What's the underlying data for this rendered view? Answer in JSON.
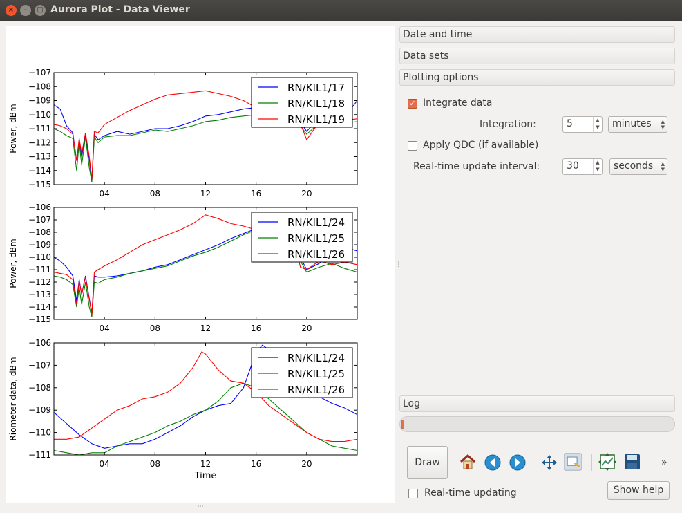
{
  "window": {
    "title": "Aurora Plot - Data Viewer",
    "close_glyph": "×",
    "min_glyph": "–",
    "max_glyph": "□"
  },
  "panel": {
    "sections": {
      "date_time": "Date and time",
      "data_sets": "Data sets",
      "plotting_options": "Plotting options",
      "log": "Log"
    },
    "integrate_data": {
      "label": "Integrate data",
      "checked": true
    },
    "integration": {
      "label": "Integration:",
      "value": "5",
      "unit": "minutes"
    },
    "apply_qdc": {
      "label": "Apply QDC (if available)",
      "checked": false
    },
    "update_interval": {
      "label": "Real-time update interval:",
      "value": "30",
      "unit": "seconds"
    },
    "progress": 0.01,
    "draw_label": "Draw",
    "realtime_updating": {
      "label": "Real-time updating",
      "checked": false
    },
    "show_help_label": "Show help",
    "more_glyph": "»",
    "toolbar_icons": [
      "home-icon",
      "back-icon",
      "forward-icon",
      "pan-icon",
      "zoom-icon",
      "configure-subplots-icon",
      "save-icon"
    ]
  },
  "colors": {
    "series1": "#0000ff",
    "series2": "#008000",
    "series3": "#ff0000",
    "accent": "#e0704d"
  },
  "chart_data": [
    {
      "type": "line",
      "ylabel": "Power, dBm",
      "xlabel": "",
      "xlim": [
        0,
        24
      ],
      "ylim": [
        -115,
        -107
      ],
      "xticks": [
        4,
        8,
        12,
        16,
        20
      ],
      "xticklabels": [
        "04",
        "08",
        "12",
        "16",
        "20"
      ],
      "yticks": [
        -115,
        -114,
        -113,
        -112,
        -111,
        -110,
        -109,
        -108,
        -107
      ],
      "legend": "top-right",
      "series": [
        {
          "name": "RN/KIL1/17",
          "color": "#0000ff",
          "x": [
            0,
            0.5,
            1,
            1.5,
            1.8,
            2,
            2.2,
            2.5,
            2.8,
            3,
            3.2,
            3.5,
            4,
            5,
            6,
            7,
            8,
            9,
            10,
            11,
            12,
            13,
            14,
            15,
            16,
            17,
            18,
            19,
            19.5,
            20,
            21,
            22,
            23,
            24
          ],
          "y": [
            -109.3,
            -109.6,
            -110.8,
            -111.3,
            -113.3,
            -111.8,
            -113.0,
            -111.4,
            -113.2,
            -114.8,
            -111.4,
            -111.8,
            -111.5,
            -111.2,
            -111.4,
            -111.2,
            -111.0,
            -111.0,
            -110.8,
            -110.5,
            -110.1,
            -110.0,
            -109.8,
            -109.6,
            -109.5,
            -109.3,
            -109.4,
            -109.5,
            -110.5,
            -111.2,
            -110.2,
            -110.3,
            -110.2,
            -109.0
          ]
        },
        {
          "name": "RN/KIL1/18",
          "color": "#008000",
          "x": [
            0,
            0.5,
            1,
            1.5,
            1.8,
            2,
            2.2,
            2.5,
            2.8,
            3,
            3.2,
            3.5,
            4,
            5,
            6,
            7,
            8,
            9,
            10,
            11,
            12,
            13,
            14,
            15,
            16,
            17,
            18,
            19,
            19.5,
            20,
            21,
            22,
            23,
            24
          ],
          "y": [
            -111.0,
            -111.2,
            -111.5,
            -111.7,
            -114.0,
            -112.0,
            -113.6,
            -111.6,
            -113.8,
            -114.8,
            -111.6,
            -112.0,
            -111.6,
            -111.5,
            -111.5,
            -111.3,
            -111.1,
            -111.2,
            -111.0,
            -110.8,
            -110.5,
            -110.4,
            -110.2,
            -110.1,
            -110.0,
            -110.1,
            -110.2,
            -110.3,
            -110.8,
            -111.4,
            -110.6,
            -110.7,
            -110.6,
            -110.5
          ]
        },
        {
          "name": "RN/KIL1/19",
          "color": "#ff0000",
          "x": [
            0,
            0.5,
            1,
            1.5,
            1.8,
            2,
            2.2,
            2.5,
            2.8,
            3,
            3.2,
            3.5,
            4,
            5,
            6,
            7,
            8,
            9,
            10,
            11,
            12,
            13,
            14,
            15,
            16,
            17,
            18,
            19,
            19.5,
            20,
            21,
            22,
            23,
            24
          ],
          "y": [
            -110.7,
            -110.8,
            -111.0,
            -111.4,
            -113.3,
            -111.7,
            -112.8,
            -111.3,
            -113.0,
            -114.6,
            -111.2,
            -111.3,
            -110.7,
            -110.2,
            -109.7,
            -109.3,
            -108.9,
            -108.6,
            -108.5,
            -108.4,
            -108.3,
            -108.5,
            -108.7,
            -109.0,
            -109.5,
            -109.7,
            -109.8,
            -110.0,
            -110.6,
            -111.8,
            -110.5,
            -110.7,
            -110.4,
            -110.3
          ]
        }
      ]
    },
    {
      "type": "line",
      "ylabel": "Power, dBm",
      "xlabel": "",
      "xlim": [
        0,
        24
      ],
      "ylim": [
        -115,
        -106
      ],
      "xticks": [
        4,
        8,
        12,
        16,
        20
      ],
      "xticklabels": [
        "04",
        "08",
        "12",
        "16",
        "20"
      ],
      "yticks": [
        -115,
        -114,
        -113,
        -112,
        -111,
        -110,
        -109,
        -108,
        -107,
        -106
      ],
      "legend": "top-right",
      "series": [
        {
          "name": "RN/KIL1/24",
          "color": "#0000ff",
          "x": [
            0,
            0.5,
            1,
            1.5,
            1.8,
            2,
            2.2,
            2.5,
            2.8,
            3,
            3.2,
            3.5,
            4,
            5,
            6,
            7,
            8,
            9,
            10,
            11,
            12,
            13,
            14,
            15,
            16,
            17,
            18,
            19,
            19.5,
            20,
            21,
            22,
            23,
            24
          ],
          "y": [
            -110.0,
            -110.3,
            -110.8,
            -111.5,
            -113.5,
            -111.8,
            -113.0,
            -111.5,
            -113.3,
            -114.5,
            -111.5,
            -111.6,
            -111.6,
            -111.5,
            -111.3,
            -111.1,
            -110.8,
            -110.6,
            -110.2,
            -109.8,
            -109.4,
            -109.0,
            -108.5,
            -108.1,
            -107.7,
            -107.4,
            -107.5,
            -108.0,
            -110.0,
            -111.0,
            -110.5,
            -109.5,
            -109.2,
            -109.5
          ]
        },
        {
          "name": "RN/KIL1/25",
          "color": "#008000",
          "x": [
            0,
            0.5,
            1,
            1.5,
            1.8,
            2,
            2.2,
            2.5,
            2.8,
            3,
            3.2,
            3.5,
            4,
            5,
            6,
            7,
            8,
            9,
            10,
            11,
            12,
            13,
            14,
            15,
            16,
            17,
            18,
            19,
            19.5,
            20,
            21,
            22,
            23,
            24
          ],
          "y": [
            -111.5,
            -111.6,
            -111.8,
            -112.2,
            -114.0,
            -112.4,
            -113.8,
            -112.0,
            -114.0,
            -114.8,
            -112.0,
            -112.1,
            -111.8,
            -111.6,
            -111.3,
            -111.1,
            -110.9,
            -110.7,
            -110.3,
            -109.9,
            -109.6,
            -109.2,
            -108.7,
            -108.2,
            -107.8,
            -107.5,
            -107.7,
            -108.2,
            -110.3,
            -111.2,
            -110.8,
            -110.5,
            -110.9,
            -111.2
          ]
        },
        {
          "name": "RN/KIL1/26",
          "color": "#ff0000",
          "x": [
            0,
            0.5,
            1,
            1.5,
            1.8,
            2,
            2.2,
            2.5,
            2.8,
            3,
            3.2,
            3.5,
            4,
            5,
            6,
            7,
            8,
            9,
            10,
            11,
            12,
            13,
            14,
            15,
            16,
            17,
            18,
            19,
            19.5,
            20,
            21,
            22,
            23,
            24
          ],
          "y": [
            -111.2,
            -111.3,
            -111.4,
            -111.8,
            -113.8,
            -111.9,
            -113.0,
            -111.6,
            -113.4,
            -114.6,
            -111.2,
            -111.0,
            -110.7,
            -110.2,
            -109.6,
            -109.0,
            -108.6,
            -108.2,
            -107.8,
            -107.3,
            -106.6,
            -106.9,
            -107.3,
            -107.5,
            -107.8,
            -108.0,
            -108.3,
            -108.7,
            -110.8,
            -111.0,
            -110.3,
            -110.6,
            -110.4,
            -110.6
          ]
        }
      ]
    },
    {
      "type": "line",
      "ylabel": "Riometer data, dBm",
      "xlabel": "Time",
      "xlim": [
        0,
        24
      ],
      "ylim": [
        -111,
        -106
      ],
      "xticks": [
        4,
        8,
        12,
        16,
        20
      ],
      "xticklabels": [
        "04",
        "08",
        "12",
        "16",
        "20"
      ],
      "yticks": [
        -111,
        -110,
        -109,
        -108,
        -107,
        -106
      ],
      "legend": "top-right",
      "series": [
        {
          "name": "RN/KIL1/24",
          "color": "#0000ff",
          "x": [
            0,
            1,
            2,
            3,
            4,
            5,
            6,
            7,
            8,
            9,
            10,
            11,
            12,
            13,
            14,
            15,
            16,
            16.5,
            17,
            18,
            19,
            20,
            21,
            22,
            23,
            24
          ],
          "y": [
            -109.1,
            -109.6,
            -110.1,
            -110.5,
            -110.7,
            -110.6,
            -110.5,
            -110.5,
            -110.3,
            -110.0,
            -109.7,
            -109.3,
            -109.0,
            -108.8,
            -108.7,
            -108.0,
            -106.4,
            -106.1,
            -106.3,
            -107.2,
            -107.8,
            -108.2,
            -108.4,
            -108.7,
            -108.9,
            -109.2
          ]
        },
        {
          "name": "RN/KIL1/25",
          "color": "#008000",
          "x": [
            0,
            1,
            2,
            3,
            4,
            5,
            6,
            7,
            8,
            9,
            10,
            11,
            12,
            13,
            14,
            15,
            16,
            17,
            18,
            19,
            20,
            21,
            22,
            23,
            24
          ],
          "y": [
            -110.8,
            -110.9,
            -111.0,
            -110.9,
            -110.9,
            -110.6,
            -110.4,
            -110.2,
            -110.0,
            -109.7,
            -109.5,
            -109.2,
            -109.0,
            -108.6,
            -108.0,
            -107.8,
            -108.0,
            -108.5,
            -109.0,
            -109.5,
            -110.0,
            -110.3,
            -110.6,
            -110.7,
            -110.8
          ]
        },
        {
          "name": "RN/KIL1/26",
          "color": "#ff0000",
          "x": [
            0,
            1,
            2,
            3,
            4,
            5,
            6,
            7,
            8,
            9,
            10,
            11,
            11.7,
            12,
            13,
            14,
            15,
            16,
            17,
            18,
            19,
            20,
            21,
            22,
            23,
            24
          ],
          "y": [
            -110.3,
            -110.3,
            -110.2,
            -109.8,
            -109.4,
            -109.0,
            -108.8,
            -108.5,
            -108.4,
            -108.2,
            -107.8,
            -107.1,
            -106.4,
            -106.5,
            -107.2,
            -107.7,
            -107.8,
            -108.2,
            -108.8,
            -109.2,
            -109.6,
            -110.0,
            -110.3,
            -110.4,
            -110.4,
            -110.3
          ]
        }
      ]
    }
  ]
}
